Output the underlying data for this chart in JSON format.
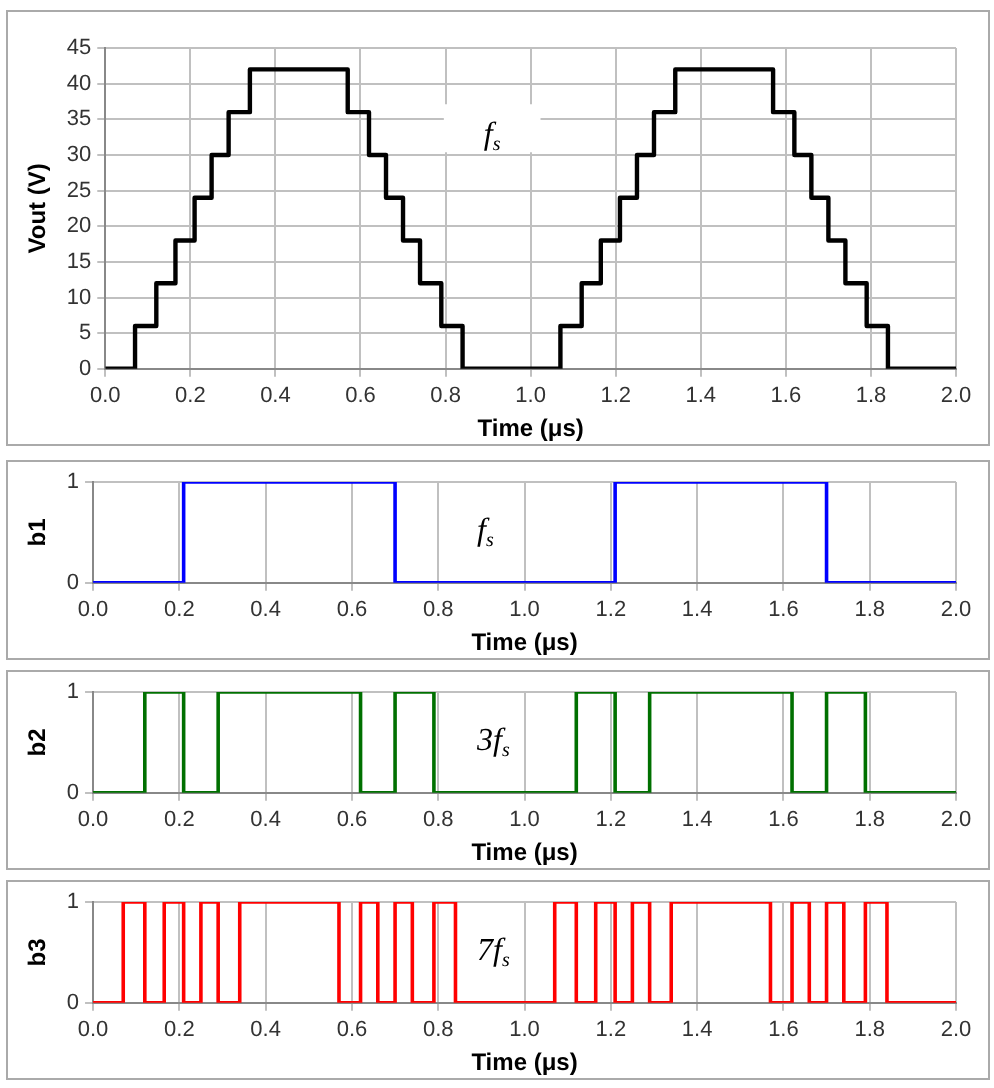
{
  "chart_data": [
    {
      "type": "step",
      "ylabel": "Vout (V)",
      "xlabel": "Time (μs)",
      "annotations": [
        "f$_{s}$"
      ],
      "grid": true,
      "legend": false,
      "marker": "none",
      "line_style": "solid",
      "xlim": [
        0,
        2
      ],
      "xticks": [
        {
          "value": 0,
          "label": "0.0"
        },
        0.2,
        0.4,
        0.6,
        0.8,
        {
          "value": 1,
          "label": "1.0"
        },
        1.2,
        1.4,
        1.6,
        1.8,
        {
          "value": 2,
          "label": "2.0"
        }
      ],
      "ylim": [
        0,
        45
      ],
      "yticks": [
        0,
        5,
        10,
        15,
        20,
        25,
        30,
        35,
        40,
        45
      ],
      "x": [
        0,
        0.07,
        0.12,
        0.165,
        0.21,
        0.25,
        0.29,
        0.34,
        0.57,
        0.62,
        0.66,
        0.7,
        0.74,
        0.79,
        0.84,
        1.07,
        1.12,
        1.165,
        1.21,
        1.25,
        1.29,
        1.34,
        1.57,
        1.62,
        1.66,
        1.7,
        1.74,
        1.79,
        1.84,
        2.0
      ],
      "series": [
        {
          "color": "#000000",
          "values": [
            0,
            6,
            12,
            18,
            24,
            30,
            36,
            42,
            36,
            30,
            24,
            18,
            12,
            6,
            0,
            6,
            12,
            18,
            24,
            30,
            36,
            42,
            36,
            30,
            24,
            18,
            12,
            6,
            0,
            0
          ]
        }
      ]
    },
    {
      "type": "step",
      "ylabel": "b1",
      "xlabel": "Time (μs)",
      "annotations": [
        "f$_{s}$"
      ],
      "grid": true,
      "legend": false,
      "marker": "none",
      "line_style": "solid",
      "xlim": [
        0,
        2
      ],
      "xticks": [
        {
          "value": 0,
          "label": "0.0"
        },
        0.2,
        0.4,
        0.6,
        0.8,
        {
          "value": 1,
          "label": "1.0"
        },
        1.2,
        1.4,
        1.6,
        1.8,
        {
          "value": 2,
          "label": "2.0"
        }
      ],
      "ylim": [
        0,
        1
      ],
      "yticks": [
        0,
        1
      ],
      "x": [
        0,
        0.07,
        0.12,
        0.165,
        0.21,
        0.25,
        0.29,
        0.34,
        0.57,
        0.62,
        0.66,
        0.7,
        0.74,
        0.79,
        0.84,
        1.07,
        1.12,
        1.165,
        1.21,
        1.25,
        1.29,
        1.34,
        1.57,
        1.62,
        1.66,
        1.7,
        1.74,
        1.79,
        1.84,
        2.0
      ],
      "series": [
        {
          "color": "#0000ff",
          "values": [
            0,
            0,
            0,
            0,
            1,
            1,
            1,
            1,
            1,
            1,
            1,
            0,
            0,
            0,
            0,
            0,
            0,
            0,
            1,
            1,
            1,
            1,
            1,
            1,
            1,
            0,
            0,
            0,
            0,
            0
          ]
        }
      ]
    },
    {
      "type": "step",
      "ylabel": "b2",
      "xlabel": "Time (μs)",
      "annotations": [
        "3f$_{s}$"
      ],
      "grid": true,
      "legend": false,
      "marker": "none",
      "line_style": "solid",
      "xlim": [
        0,
        2
      ],
      "xticks": [
        {
          "value": 0,
          "label": "0.0"
        },
        0.2,
        0.4,
        0.6,
        0.8,
        {
          "value": 1,
          "label": "1.0"
        },
        1.2,
        1.4,
        1.6,
        1.8,
        {
          "value": 2,
          "label": "2.0"
        }
      ],
      "ylim": [
        0,
        1
      ],
      "yticks": [
        0,
        1
      ],
      "x": [
        0,
        0.07,
        0.12,
        0.165,
        0.21,
        0.25,
        0.29,
        0.34,
        0.57,
        0.62,
        0.66,
        0.7,
        0.74,
        0.79,
        0.84,
        1.07,
        1.12,
        1.165,
        1.21,
        1.25,
        1.29,
        1.34,
        1.57,
        1.62,
        1.66,
        1.7,
        1.74,
        1.79,
        1.84,
        2.0
      ],
      "series": [
        {
          "color": "#007000",
          "values": [
            0,
            0,
            1,
            1,
            0,
            0,
            1,
            1,
            1,
            0,
            0,
            1,
            1,
            0,
            0,
            0,
            1,
            1,
            0,
            0,
            1,
            1,
            1,
            0,
            0,
            1,
            1,
            0,
            0,
            0
          ]
        }
      ]
    },
    {
      "type": "step",
      "ylabel": "b3",
      "xlabel": "Time (μs)",
      "annotations": [
        "7f$_{s}$"
      ],
      "grid": true,
      "legend": false,
      "marker": "none",
      "line_style": "solid",
      "xlim": [
        0,
        2
      ],
      "xticks": [
        {
          "value": 0,
          "label": "0.0"
        },
        0.2,
        0.4,
        0.6,
        0.8,
        {
          "value": 1,
          "label": "1.0"
        },
        1.2,
        1.4,
        1.6,
        1.8,
        {
          "value": 2,
          "label": "2.0"
        }
      ],
      "ylim": [
        0,
        1
      ],
      "yticks": [
        0,
        1
      ],
      "x": [
        0,
        0.07,
        0.12,
        0.165,
        0.21,
        0.25,
        0.29,
        0.34,
        0.57,
        0.62,
        0.66,
        0.7,
        0.74,
        0.79,
        0.84,
        1.07,
        1.12,
        1.165,
        1.21,
        1.25,
        1.29,
        1.34,
        1.57,
        1.62,
        1.66,
        1.7,
        1.74,
        1.79,
        1.84,
        2.0
      ],
      "series": [
        {
          "color": "#ff0000",
          "values": [
            0,
            1,
            0,
            1,
            0,
            1,
            0,
            1,
            0,
            1,
            0,
            1,
            0,
            1,
            0,
            1,
            0,
            1,
            0,
            1,
            0,
            1,
            0,
            1,
            0,
            1,
            0,
            1,
            0,
            0
          ]
        }
      ]
    }
  ]
}
